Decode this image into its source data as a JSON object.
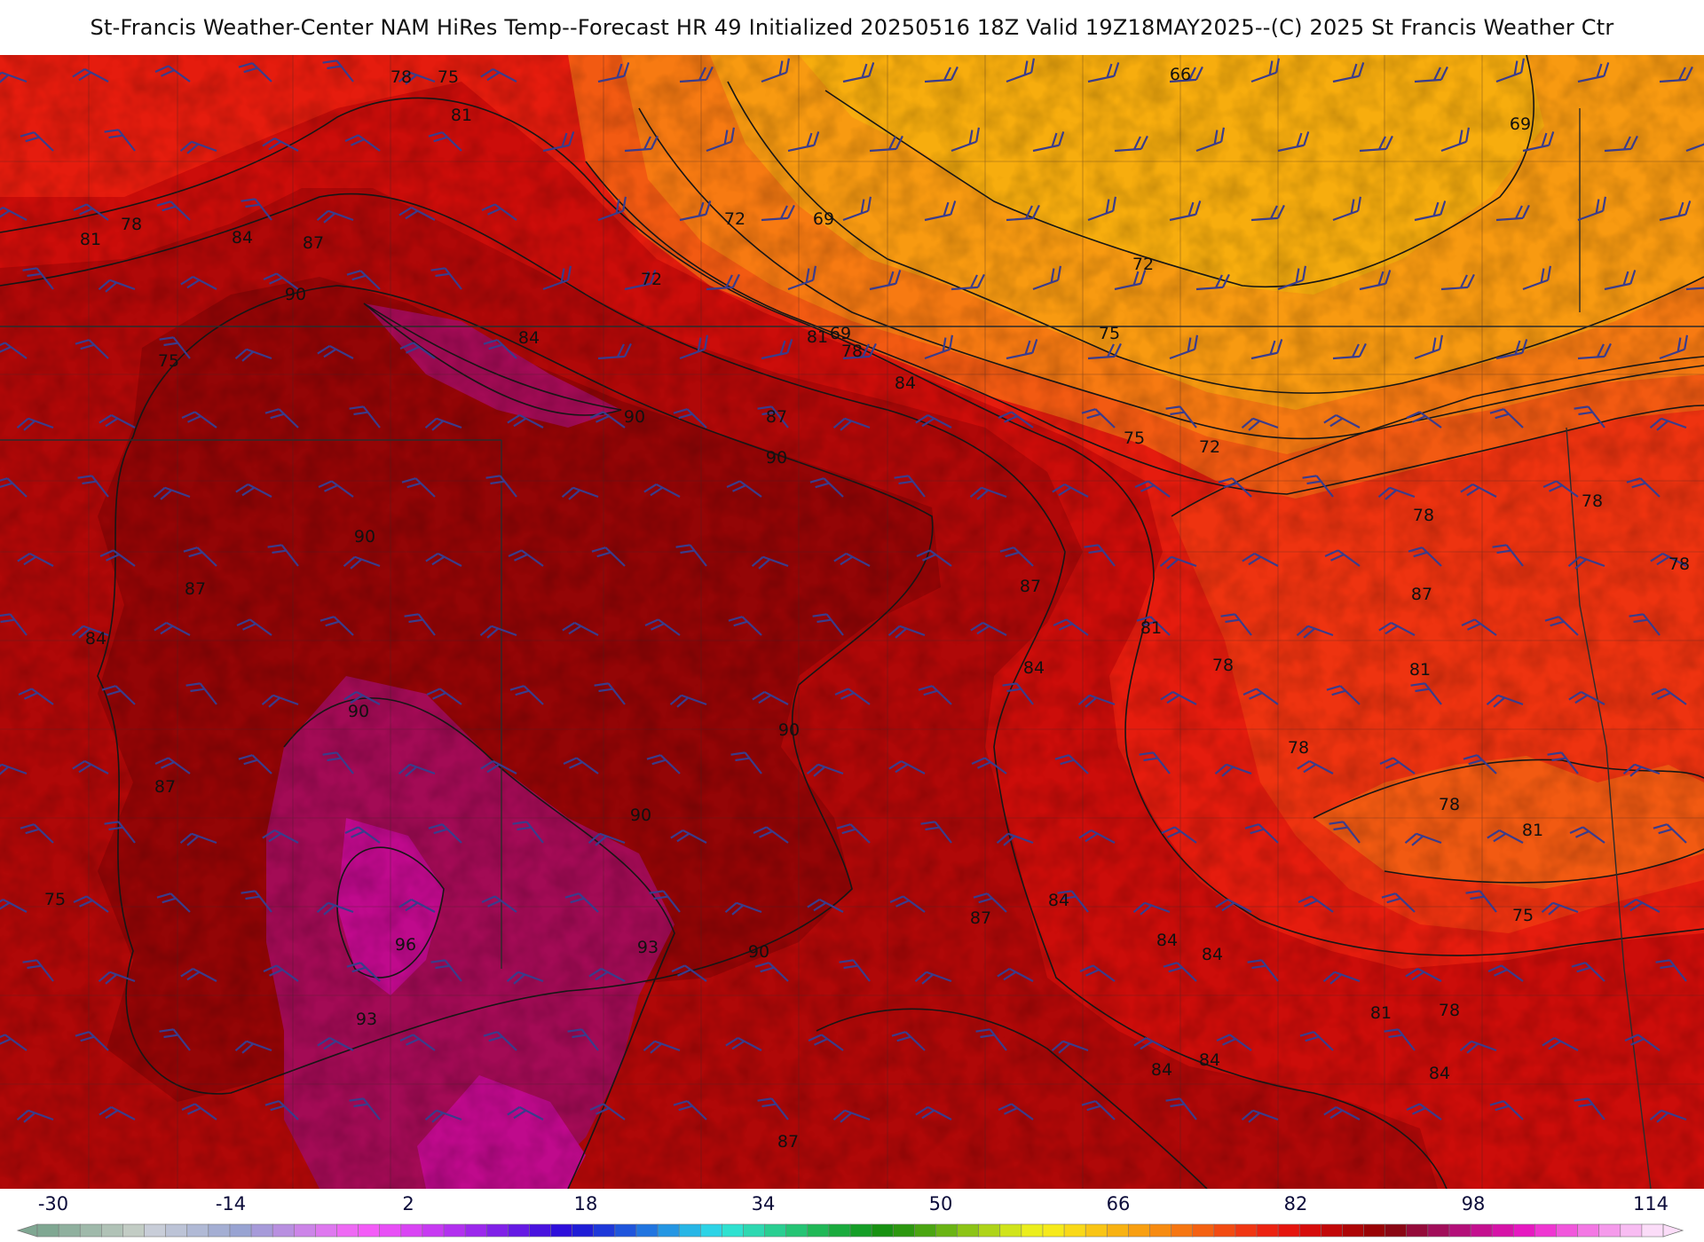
{
  "title": "St-Francis Weather-Center NAM HiRes Temp--Forecast HR 49 Initialized 20250516 18Z Valid 19Z18MAY2025--(C) 2025 St Francis Weather Ctr",
  "colors": {
    "t66": "#f7ad0e",
    "t69": "#f89a11",
    "t72": "#f77a12",
    "t75": "#f25a12",
    "t78": "#ee3310",
    "t81": "#e51c0e",
    "t84": "#cc0d0a",
    "t87": "#b00808",
    "t90": "#940506",
    "t93": "#a30b55",
    "t96": "#bf0a8c",
    "contour": "#161616",
    "barb": "#3a3c8c",
    "border": "#2b2b2b"
  },
  "contour_labels": [
    "78",
    "75",
    "81",
    "72",
    "69",
    "66",
    "69",
    "78",
    "81",
    "84",
    "87",
    "75",
    "90",
    "72",
    "69",
    "72",
    "84",
    "81",
    "78",
    "84",
    "87",
    "90",
    "75",
    "72",
    "90",
    "75",
    "78",
    "78",
    "87",
    "90",
    "87",
    "84",
    "81",
    "87",
    "78",
    "84",
    "81",
    "78",
    "90",
    "90",
    "90",
    "78",
    "87",
    "81",
    "78",
    "75",
    "84",
    "96",
    "93",
    "87",
    "84",
    "84",
    "90",
    "75",
    "93",
    "84",
    "84",
    "81",
    "78",
    "84",
    "87"
  ],
  "colorbar": {
    "ticks": [
      "-30",
      "-14",
      "2",
      "18",
      "34",
      "50",
      "66",
      "82",
      "98",
      "114"
    ],
    "swatches": [
      "#7fa792",
      "#8fb09e",
      "#9fb9aa",
      "#b0c2b6",
      "#c2ccc4",
      "#c8cdd8",
      "#bcc3d6",
      "#b0b9d5",
      "#a4aed3",
      "#98a3d2",
      "#a69ad9",
      "#b88fe0",
      "#cc84e8",
      "#de78ef",
      "#ee6af4",
      "#f35cf7",
      "#e84ff6",
      "#d944f4",
      "#c73af2",
      "#b230ef",
      "#9b28ec",
      "#8021e8",
      "#651ae4",
      "#4913df",
      "#2e0fdb",
      "#1f1dd6",
      "#1e38d9",
      "#1f55dc",
      "#2175e0",
      "#2496e3",
      "#27b6e6",
      "#2dd3e6",
      "#2fe1d0",
      "#2ed8b1",
      "#2ace91",
      "#25c474",
      "#20b857",
      "#1aab3e",
      "#159e27",
      "#179112",
      "#2c9710",
      "#4aa512",
      "#6ab414",
      "#8cc416",
      "#aed419",
      "#d0e41b",
      "#ebee1d",
      "#f6ea1b",
      "#f9d918",
      "#f9c515",
      "#f8b212",
      "#f89f11",
      "#f78b11",
      "#f67611",
      "#f46112",
      "#f24b12",
      "#f03613",
      "#ec2311",
      "#e5150e",
      "#d60c0b",
      "#c20809",
      "#ad0607",
      "#990306",
      "#8a0714",
      "#940b3a",
      "#a10e5a",
      "#b30f79",
      "#c4108f",
      "#d613a8",
      "#e619c1",
      "#ef36d2",
      "#f157dc",
      "#f378e4",
      "#f59aeb",
      "#f8bcf2",
      "#fbdcf8"
    ]
  }
}
